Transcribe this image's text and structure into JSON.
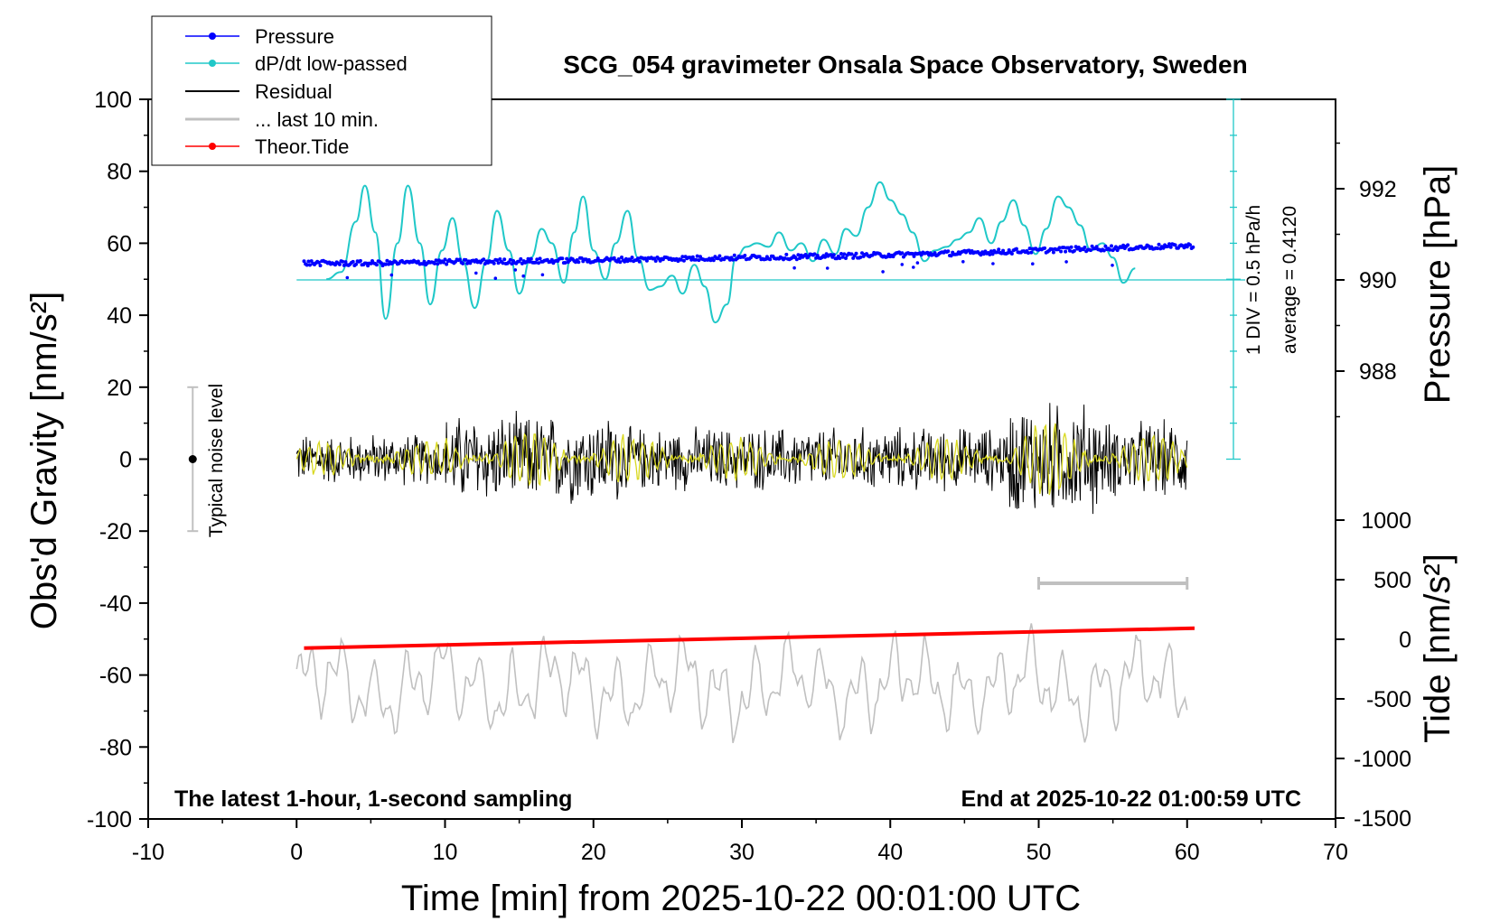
{
  "chart_data": {
    "type": "line",
    "title": "SCG_054 gravimeter Onsala Space Observatory, Sweden",
    "xlabel": "Time [min] from 2025-10-22 00:01:00 UTC",
    "ylabel_left": "Obs'd Gravity [nm/s²]",
    "ylabel_right_top": "Pressure [hPa]",
    "ylabel_right_bottom": "Tide [nm/s²]",
    "xlim": [
      -10,
      70
    ],
    "ylim_left": [
      -100,
      100
    ],
    "x_ticks": [
      "-10",
      "0",
      "10",
      "20",
      "30",
      "40",
      "50",
      "60",
      "70"
    ],
    "y_ticks_left": [
      "-100",
      "-80",
      "-60",
      "-40",
      "-20",
      "0",
      "20",
      "40",
      "60",
      "80",
      "100"
    ],
    "pressure_ticks": [
      "988",
      "990",
      "992"
    ],
    "tide_ticks": [
      "-1500",
      "-1000",
      "-500",
      "0",
      "500",
      "1000"
    ],
    "pressure_scale_note": "1 DIV = 0.5 hPa/h",
    "pressure_average_note": "average = 0.4120",
    "noise_bar_label": "Typical noise level",
    "note_left": "The latest 1-hour, 1-second sampling",
    "note_right": "End at 2025-10-22 01:00:59 UTC",
    "legend": [
      {
        "label": "Pressure",
        "color": "#0000ff",
        "style": "line-dot"
      },
      {
        "label": "dP/dt low-passed",
        "color": "#20c8c8",
        "style": "line-dot"
      },
      {
        "label": "Residual",
        "color": "#000000",
        "style": "line"
      },
      {
        "label": "... last 10 min.",
        "color": "#c0c0c0",
        "style": "line"
      },
      {
        "label": "Theor.Tide",
        "color": "#ff0000",
        "style": "line-dot"
      }
    ],
    "legend_position": "top-left",
    "series": [
      {
        "name": "Pressure",
        "color": "#0000ff",
        "x": [
          0.5,
          5,
          10,
          15,
          20,
          25,
          30,
          35,
          40,
          45,
          50,
          55,
          60.5
        ],
        "y": [
          54.5,
          54.4,
          54.8,
          55.0,
          55.3,
          55.7,
          56.0,
          56.3,
          56.8,
          57.3,
          58.0,
          58.7,
          59.3
        ]
      },
      {
        "name": "dP/dt low-passed",
        "color": "#20c8c8",
        "x": [
          2,
          3,
          4,
          4.6,
          5.3,
          6,
          6.8,
          7.5,
          8.3,
          9,
          9.8,
          10.5,
          11.2,
          12,
          12.8,
          13.5,
          14.3,
          15,
          15.8,
          16.5,
          17.2,
          18,
          18.7,
          19.3,
          20,
          20.8,
          21.5,
          22.3,
          23,
          23.8,
          24.5,
          25.3,
          26,
          26.8,
          27.5,
          28.2,
          29,
          29.6,
          30.3,
          31,
          31.8,
          32.5,
          33.3,
          34,
          34.8,
          35.5,
          36.3,
          37,
          37.7,
          38.5,
          39.3,
          40,
          40.8,
          41.5,
          42.3,
          43,
          43.8,
          44.5,
          45.3,
          46,
          46.8,
          47.5,
          48.3,
          49,
          49.8,
          50.5,
          51.3,
          52,
          52.8,
          53.5,
          54.3,
          55,
          55.7,
          56.5
        ],
        "y": [
          50,
          52,
          66,
          76,
          63,
          39,
          60,
          76,
          60,
          43,
          58,
          67,
          55,
          42,
          55,
          69,
          58,
          46,
          56,
          64,
          60,
          49,
          63,
          73,
          58,
          50,
          60,
          69,
          56,
          47,
          48,
          51,
          46,
          54,
          48,
          38,
          43,
          56,
          59,
          60,
          59,
          63,
          58,
          60,
          55,
          61,
          57,
          64,
          62,
          70,
          77,
          72,
          68,
          63,
          55,
          58,
          59,
          61,
          63,
          67,
          60,
          66,
          72,
          65,
          57,
          64,
          73,
          70,
          65,
          58,
          60,
          56,
          49,
          53
        ]
      },
      {
        "name": "Residual",
        "color": "#000000",
        "x": [
          0,
          60
        ],
        "y": [
          0,
          0
        ],
        "envelope": [
          {
            "x": [
              0,
              10
            ],
            "amplitude": 8
          },
          {
            "x": [
              10,
              22
            ],
            "amplitude": 14
          },
          {
            "x": [
              22,
              48
            ],
            "amplitude": 10
          },
          {
            "x": [
              48,
              54
            ],
            "amplitude": 18
          },
          {
            "x": [
              54,
              60
            ],
            "amplitude": 12
          }
        ]
      },
      {
        "name": "... last 10 min.",
        "color": "#c0c0c0",
        "x": [
          0,
          60
        ],
        "y": [
          -64,
          -60
        ],
        "range_y": [
          -83,
          -42
        ]
      },
      {
        "name": "Theor.Tide",
        "color": "#ff0000",
        "x": [
          0.5,
          60.5
        ],
        "y": [
          -52.5,
          -47
        ]
      }
    ],
    "last10_marker_x": [
      50,
      60
    ],
    "noise_bar_y": [
      -20,
      20
    ],
    "grid": false
  }
}
